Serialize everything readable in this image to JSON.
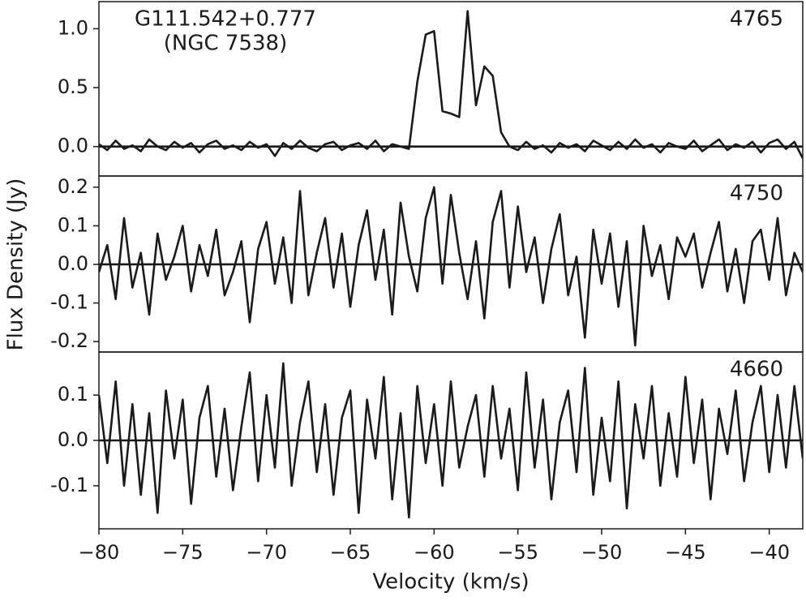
{
  "chart_data": {
    "type": "line",
    "x_label": "Velocity (km/s)",
    "y_label": "Flux Density (Jy)",
    "color": "#1a1a1a",
    "xlim": [
      -80,
      -38
    ],
    "xticks": [
      {
        "value": -80,
        "label": "−80"
      },
      {
        "value": -75,
        "label": "−75"
      },
      {
        "value": -70,
        "label": "−70"
      },
      {
        "value": -65,
        "label": "−65"
      },
      {
        "value": -60,
        "label": "−60"
      },
      {
        "value": -55,
        "label": "−55"
      },
      {
        "value": -50,
        "label": "−50"
      },
      {
        "value": -45,
        "label": "−45"
      },
      {
        "value": -40,
        "label": "−40"
      }
    ],
    "x": [
      -80,
      -79.5,
      -79,
      -78.5,
      -78,
      -77.5,
      -77,
      -76.5,
      -76,
      -75.5,
      -75,
      -74.5,
      -74,
      -73.5,
      -73,
      -72.5,
      -72,
      -71.5,
      -71,
      -70.5,
      -70,
      -69.5,
      -69,
      -68.5,
      -68,
      -67.5,
      -67,
      -66.5,
      -66,
      -65.5,
      -65,
      -64.5,
      -64,
      -63.5,
      -63,
      -62.5,
      -62,
      -61.5,
      -61,
      -60.5,
      -60,
      -59.5,
      -59,
      -58.5,
      -58,
      -57.5,
      -57,
      -56.5,
      -56,
      -55.5,
      -55,
      -54.5,
      -54,
      -53.5,
      -53,
      -52.5,
      -52,
      -51.5,
      -51,
      -50.5,
      -50,
      -49.5,
      -49,
      -48.5,
      -48,
      -47.5,
      -47,
      -46.5,
      -46,
      -45.5,
      -45,
      -44.5,
      -44,
      -43.5,
      -43,
      -42.5,
      -42,
      -41.5,
      -41,
      -40.5,
      -40,
      -39.5,
      -39,
      -38.5,
      -38
    ],
    "panels": [
      {
        "label": "4765",
        "annotations": [
          "G111.542+0.777",
          "(NGC 7538)"
        ],
        "ylim": [
          -0.25,
          1.23
        ],
        "yticks": [
          {
            "value": 0,
            "label": "0.0"
          },
          {
            "value": 0.5,
            "label": "0.5"
          },
          {
            "value": 1,
            "label": "1.0"
          }
        ],
        "values": [
          0.02,
          -0.03,
          0.05,
          -0.02,
          0.01,
          -0.04,
          0.06,
          0.0,
          -0.03,
          0.04,
          -0.01,
          0.03,
          -0.05,
          0.02,
          0.05,
          -0.02,
          0.01,
          -0.03,
          0.04,
          -0.01,
          0.02,
          -0.08,
          0.03,
          -0.02,
          0.05,
          -0.01,
          -0.04,
          0.02,
          0.04,
          -0.03,
          0.01,
          0.03,
          -0.02,
          0.05,
          -0.04,
          0.02,
          0.0,
          -0.02,
          0.55,
          0.95,
          0.98,
          0.3,
          0.28,
          0.25,
          1.15,
          0.35,
          0.68,
          0.6,
          0.12,
          0.0,
          -0.03,
          0.04,
          -0.02,
          0.01,
          -0.05,
          0.03,
          -0.01,
          0.02,
          -0.04,
          0.05,
          0.01,
          -0.03,
          0.04,
          -0.02,
          0.06,
          -0.01,
          0.02,
          -0.05,
          0.03,
          0.0,
          -0.02,
          0.05,
          -0.04,
          0.01,
          0.06,
          -0.03,
          0.02,
          -0.01,
          0.04,
          -0.05,
          0.03,
          0.06,
          -0.02,
          0.04,
          -0.1
        ]
      },
      {
        "label": "4750",
        "ylim": [
          -0.227,
          0.229
        ],
        "yticks": [
          {
            "value": -0.2,
            "label": "-0.2"
          },
          {
            "value": -0.1,
            "label": "-0.1"
          },
          {
            "value": 0,
            "label": "0.0"
          },
          {
            "value": 0.1,
            "label": "0.1"
          },
          {
            "value": 0.2,
            "label": "0.2"
          }
        ],
        "values": [
          -0.02,
          0.05,
          -0.09,
          0.12,
          -0.06,
          0.03,
          -0.13,
          0.08,
          -0.04,
          0.02,
          0.1,
          -0.07,
          0.05,
          -0.03,
          0.09,
          -0.08,
          -0.02,
          0.06,
          -0.15,
          0.04,
          0.11,
          -0.05,
          0.07,
          -0.1,
          0.19,
          -0.08,
          0.03,
          0.12,
          -0.06,
          0.08,
          -0.11,
          0.05,
          0.14,
          -0.04,
          0.09,
          -0.13,
          0.16,
          0.02,
          -0.07,
          0.12,
          0.2,
          -0.05,
          0.18,
          0.03,
          -0.09,
          0.06,
          -0.14,
          0.11,
          0.19,
          -0.06,
          0.15,
          -0.02,
          0.07,
          -0.1,
          0.04,
          0.13,
          -0.08,
          0.02,
          -0.19,
          0.09,
          -0.05,
          0.08,
          -0.11,
          0.06,
          -0.21,
          0.1,
          -0.03,
          0.05,
          -0.09,
          0.07,
          0.02,
          0.08,
          -0.06,
          0.03,
          0.11,
          -0.07,
          0.04,
          -0.1,
          0.06,
          0.09,
          -0.04,
          0.12,
          -0.08,
          0.03,
          -0.02
        ]
      },
      {
        "label": "4660",
        "ylim": [
          -0.195,
          0.195
        ],
        "yticks": [
          {
            "value": -0.1,
            "label": "-0.1"
          },
          {
            "value": 0,
            "label": "0.0"
          },
          {
            "value": 0.1,
            "label": "0.1"
          }
        ],
        "values": [
          0.1,
          -0.05,
          0.13,
          -0.1,
          0.08,
          -0.12,
          0.06,
          -0.16,
          0.11,
          -0.04,
          0.09,
          -0.14,
          0.05,
          0.12,
          -0.08,
          0.07,
          -0.11,
          0.03,
          0.15,
          -0.09,
          0.1,
          -0.06,
          0.17,
          -0.1,
          0.04,
          0.13,
          -0.07,
          0.08,
          -0.12,
          0.05,
          0.11,
          -0.16,
          0.09,
          -0.04,
          0.14,
          -0.13,
          0.06,
          -0.17,
          0.12,
          -0.05,
          0.08,
          -0.1,
          0.13,
          -0.06,
          0.03,
          0.1,
          -0.08,
          0.12,
          -0.04,
          0.07,
          -0.11,
          0.15,
          -0.06,
          0.09,
          -0.13,
          0.04,
          0.11,
          -0.07,
          0.16,
          -0.12,
          0.05,
          -0.09,
          0.13,
          -0.15,
          0.08,
          -0.04,
          0.12,
          -0.1,
          0.06,
          -0.08,
          0.14,
          -0.05,
          0.09,
          -0.13,
          0.07,
          -0.03,
          0.11,
          -0.09,
          0.04,
          0.12,
          -0.07,
          0.1,
          -0.06,
          0.12,
          -0.04
        ]
      }
    ]
  }
}
